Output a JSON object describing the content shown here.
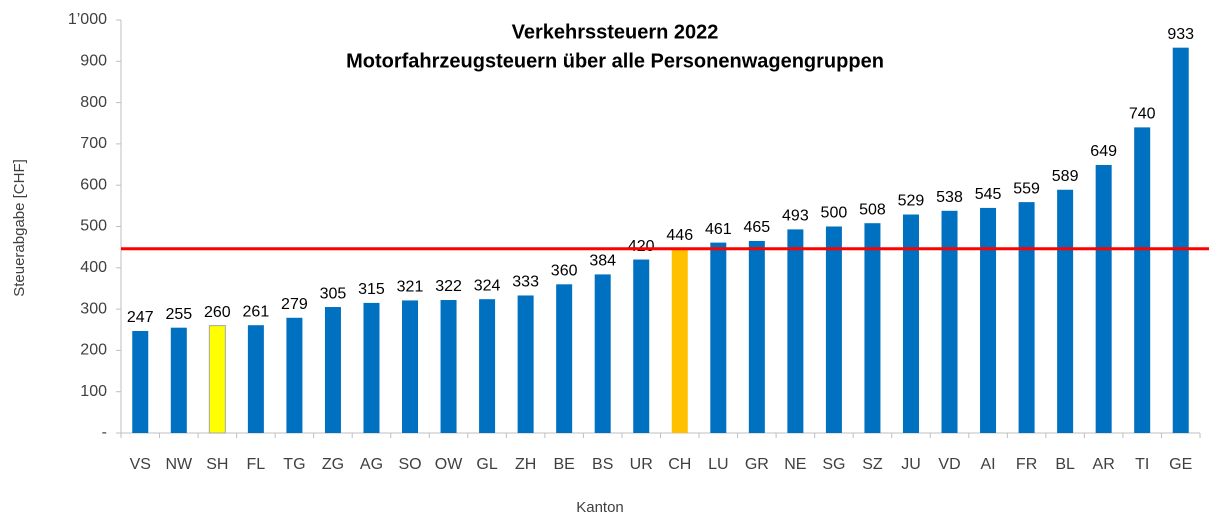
{
  "chart_data": {
    "type": "bar",
    "title": "Verkehrssteuern 2022",
    "subtitle": "Motorfahrzeugsteuern über alle Personenwagengruppen",
    "x_label": "Kanton",
    "y_label": "Steuerabgabe [CHF]",
    "categories": [
      "VS",
      "NW",
      "SH",
      "FL",
      "TG",
      "ZG",
      "AG",
      "SO",
      "OW",
      "GL",
      "ZH",
      "BE",
      "BS",
      "UR",
      "CH",
      "LU",
      "GR",
      "NE",
      "SG",
      "SZ",
      "JU",
      "VD",
      "AI",
      "FR",
      "BL",
      "AR",
      "TI",
      "GE"
    ],
    "values": [
      247,
      255,
      260,
      261,
      279,
      305,
      315,
      321,
      322,
      324,
      333,
      360,
      384,
      420,
      446,
      461,
      465,
      493,
      500,
      508,
      529,
      538,
      545,
      559,
      589,
      649,
      740,
      933
    ],
    "colors": [
      "#0070c0",
      "#0070c0",
      "#ffff00",
      "#0070c0",
      "#0070c0",
      "#0070c0",
      "#0070c0",
      "#0070c0",
      "#0070c0",
      "#0070c0",
      "#0070c0",
      "#0070c0",
      "#0070c0",
      "#0070c0",
      "#ffc000",
      "#0070c0",
      "#0070c0",
      "#0070c0",
      "#0070c0",
      "#0070c0",
      "#0070c0",
      "#0070c0",
      "#0070c0",
      "#0070c0",
      "#0070c0",
      "#0070c0",
      "#0070c0",
      "#0070c0"
    ],
    "reference_line": {
      "value": 446,
      "color": "#ff0000"
    },
    "ylim": [
      0,
      1000
    ],
    "yticks": [
      {
        "value": 0,
        "label": "-"
      },
      100,
      200,
      300,
      400,
      500,
      600,
      700,
      800,
      900,
      {
        "value": 1000,
        "label": "1’000"
      }
    ],
    "grid": false
  }
}
